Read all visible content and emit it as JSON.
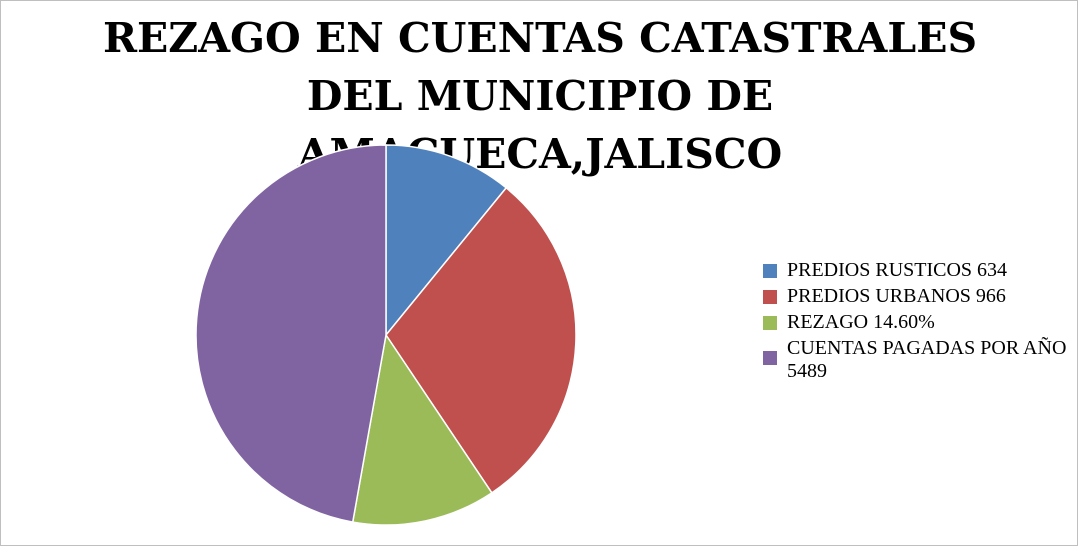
{
  "chart_data": {
    "type": "pie",
    "title": "REZAGO EN CUENTAS CATASTRALES DEL MUNICIPIO DE AMACUECA,JALISCO",
    "categories": [
      "PREDIOS RUSTICOS 634",
      "PREDIOS URBANOS 966",
      "REZAGO 14.60%",
      "CUENTAS PAGADAS POR AÑO 5489"
    ],
    "values": [
      10.9,
      29.7,
      12.2,
      47.2
    ],
    "colors": [
      "#4f81bd",
      "#c0504d",
      "#9bbb59",
      "#8064a2"
    ],
    "legend": "right"
  }
}
